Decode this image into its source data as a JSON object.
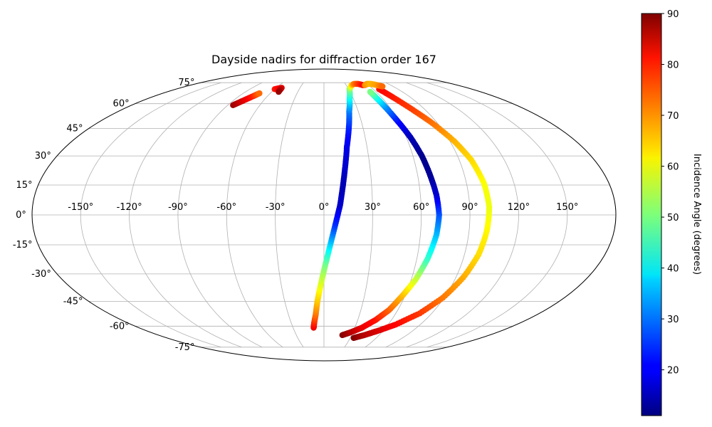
{
  "chart_data": {
    "type": "scatter",
    "projection": "mollweide",
    "title": "Dayside nadirs for diffraction order 167",
    "grid": true,
    "x_ticks": [
      "-150°",
      "-120°",
      "-90°",
      "-60°",
      "-30°",
      "0°",
      "30°",
      "60°",
      "90°",
      "120°",
      "150°"
    ],
    "y_ticks": [
      "-75°",
      "-60°",
      "-45°",
      "-30°",
      "-15°",
      "0°",
      "15°",
      "30°",
      "45°",
      "60°",
      "75°"
    ],
    "colorbar": {
      "label": "Incidence Angle (degrees)",
      "colormap": "jet",
      "range": [
        11,
        90
      ],
      "ticks": [
        "20",
        "30",
        "40",
        "50",
        "60",
        "70",
        "80",
        "90"
      ]
    },
    "series": [
      {
        "points": [
          [
            -10,
            -61,
            82
          ],
          [
            -9,
            -58,
            78
          ],
          [
            -7,
            -53,
            72
          ],
          [
            -5,
            -45,
            65
          ],
          [
            -2,
            -35,
            58
          ],
          [
            1,
            -25,
            50
          ],
          [
            4,
            -15,
            38
          ],
          [
            7,
            -5,
            25
          ],
          [
            10,
            5,
            17
          ],
          [
            12,
            15,
            15
          ],
          [
            14,
            25,
            17
          ],
          [
            16,
            35,
            19
          ],
          [
            19,
            45,
            23
          ],
          [
            22,
            55,
            30
          ],
          [
            26,
            63,
            40
          ],
          [
            31,
            70,
            50
          ],
          [
            37,
            73,
            62
          ],
          [
            42,
            74,
            70
          ],
          [
            48,
            74,
            75
          ],
          [
            53,
            73,
            80
          ]
        ]
      },
      {
        "points": [
          [
            20,
            -66,
            90
          ],
          [
            28,
            -64,
            86
          ],
          [
            37,
            -61,
            82
          ],
          [
            46,
            -56,
            79
          ],
          [
            53,
            -50,
            73
          ],
          [
            58,
            -42,
            66
          ],
          [
            63,
            -33,
            57
          ],
          [
            67,
            -22,
            45
          ],
          [
            70,
            -10,
            36
          ],
          [
            71,
            0,
            28
          ],
          [
            70,
            10,
            18
          ],
          [
            68,
            20,
            13
          ],
          [
            66,
            30,
            12
          ],
          [
            63,
            40,
            15
          ],
          [
            59,
            50,
            22
          ],
          [
            56,
            58,
            32
          ],
          [
            54,
            64,
            42
          ],
          [
            53,
            68,
            50
          ]
        ]
      },
      {
        "points": [
          [
            34,
            -68,
            90
          ],
          [
            44,
            -66,
            86
          ],
          [
            55,
            -63,
            83
          ],
          [
            67,
            -59,
            80
          ],
          [
            80,
            -52,
            76
          ],
          [
            89,
            -43,
            71
          ],
          [
            95,
            -32,
            67
          ],
          [
            99,
            -20,
            63
          ],
          [
            101,
            -8,
            61
          ],
          [
            102,
            4,
            59
          ],
          [
            101,
            16,
            60
          ],
          [
            98,
            28,
            63
          ],
          [
            93,
            38,
            66
          ],
          [
            86,
            48,
            71
          ],
          [
            79,
            56,
            75
          ],
          [
            72,
            64,
            78
          ],
          [
            67,
            70,
            80
          ]
        ]
      },
      {
        "points": [
          [
            -85,
            59,
            88
          ],
          [
            -80,
            62,
            83
          ],
          [
            -75,
            65,
            78
          ],
          [
            -72,
            67,
            72
          ]
        ]
      },
      {
        "points": [
          [
            -60,
            70,
            78
          ],
          [
            -53,
            71,
            82
          ],
          [
            -52,
            68,
            88
          ]
        ]
      },
      {
        "points": [
          [
            55,
            73,
            70
          ],
          [
            60,
            74,
            68
          ],
          [
            66,
            74,
            66
          ],
          [
            72,
            73,
            68
          ],
          [
            76,
            72,
            72
          ]
        ]
      }
    ]
  }
}
